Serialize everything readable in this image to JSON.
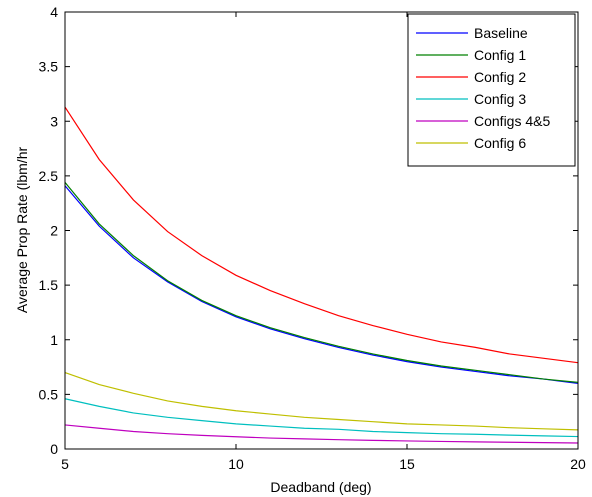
{
  "chart_data": {
    "type": "line",
    "title": "",
    "xlabel": "Deadband (deg)",
    "ylabel": "Average Prop Rate (lbm/hr",
    "xlim": [
      5,
      20
    ],
    "ylim": [
      0,
      4
    ],
    "xticks": [
      5,
      10,
      15,
      20
    ],
    "yticks": [
      0,
      0.5,
      1,
      1.5,
      2,
      2.5,
      3,
      3.5,
      4
    ],
    "xtick_labels": [
      "5",
      "10",
      "15",
      "20"
    ],
    "ytick_labels": [
      "0",
      "0.5",
      "1",
      "1.5",
      "2",
      "2.5",
      "3",
      "3.5",
      "4"
    ],
    "grid": false,
    "legend_position": "top-right",
    "x": [
      5,
      6,
      7,
      8,
      9,
      10,
      11,
      12,
      13,
      14,
      15,
      16,
      17,
      18,
      19,
      20
    ],
    "series": [
      {
        "name": "Baseline",
        "color": "#0000ff",
        "values": [
          2.41,
          2.04,
          1.75,
          1.53,
          1.35,
          1.21,
          1.1,
          1.01,
          0.93,
          0.86,
          0.8,
          0.75,
          0.71,
          0.67,
          0.64,
          0.6
        ]
      },
      {
        "name": "Config 1",
        "color": "#008000",
        "values": [
          2.44,
          2.06,
          1.77,
          1.54,
          1.36,
          1.22,
          1.11,
          1.02,
          0.94,
          0.87,
          0.81,
          0.76,
          0.72,
          0.68,
          0.64,
          0.61
        ]
      },
      {
        "name": "Config 2",
        "color": "#ff0000",
        "values": [
          3.13,
          2.65,
          2.28,
          1.99,
          1.77,
          1.59,
          1.45,
          1.33,
          1.22,
          1.13,
          1.05,
          0.98,
          0.93,
          0.87,
          0.83,
          0.79
        ]
      },
      {
        "name": "Config 3",
        "color": "#00bfbf",
        "values": [
          0.46,
          0.39,
          0.33,
          0.29,
          0.26,
          0.23,
          0.21,
          0.19,
          0.18,
          0.16,
          0.15,
          0.14,
          0.135,
          0.127,
          0.12,
          0.114
        ]
      },
      {
        "name": "Configs 4&5",
        "color": "#bf00bf",
        "values": [
          0.22,
          0.19,
          0.16,
          0.14,
          0.125,
          0.112,
          0.1,
          0.093,
          0.085,
          0.079,
          0.074,
          0.069,
          0.065,
          0.062,
          0.058,
          0.055
        ]
      },
      {
        "name": "Config 6",
        "color": "#bfbf00",
        "values": [
          0.7,
          0.59,
          0.51,
          0.44,
          0.39,
          0.35,
          0.32,
          0.29,
          0.27,
          0.25,
          0.23,
          0.22,
          0.21,
          0.195,
          0.185,
          0.175
        ]
      }
    ]
  }
}
